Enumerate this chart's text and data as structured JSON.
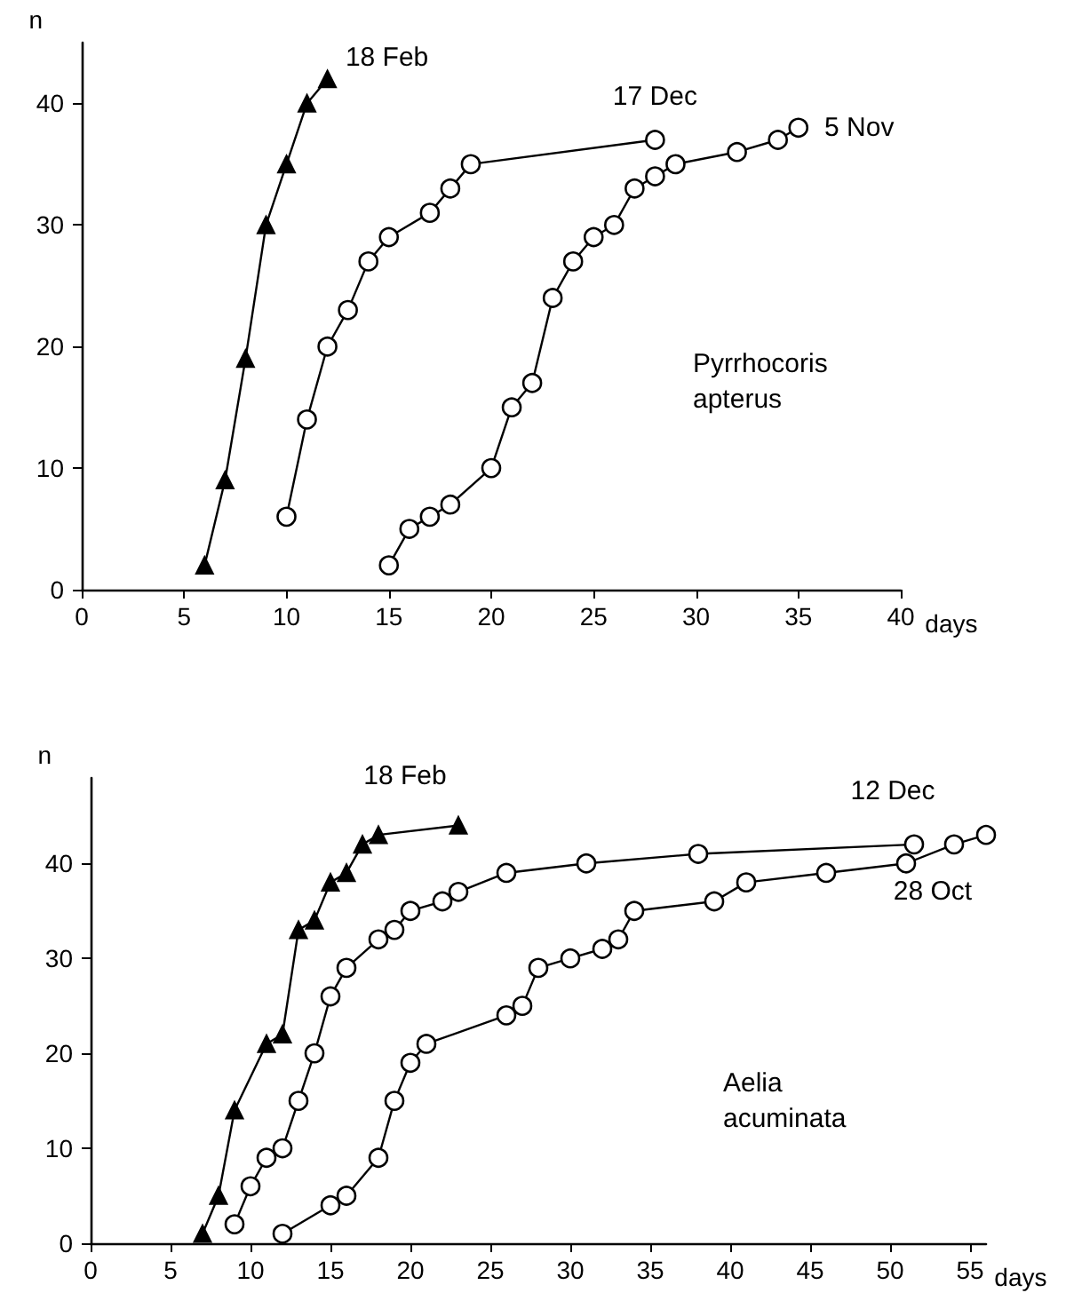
{
  "chart_data": [
    {
      "type": "line",
      "xlabel": "days",
      "ylabel": "n",
      "xlim": [
        0,
        40
      ],
      "ylim": [
        0,
        45
      ],
      "xticks": [
        0,
        5,
        10,
        15,
        20,
        25,
        30,
        35,
        40
      ],
      "yticks": [
        0,
        10,
        20,
        30,
        40
      ],
      "grid": false,
      "legend": false,
      "annotations": [
        "Pyrrhocoris apterus"
      ],
      "series": [
        {
          "name": "18 Feb",
          "color": "#000000",
          "marker": "triangle",
          "x": [
            6,
            7,
            8,
            9,
            10,
            11,
            12
          ],
          "values": [
            2,
            9,
            19,
            30,
            35,
            40,
            42
          ]
        },
        {
          "name": "17 Dec",
          "color": "#000000",
          "marker": "circle",
          "x": [
            10,
            11,
            12,
            13,
            14,
            15,
            17,
            18,
            19,
            28
          ],
          "values": [
            6,
            14,
            20,
            23,
            27,
            29,
            31,
            33,
            35,
            37
          ]
        },
        {
          "name": "5 Nov",
          "color": "#000000",
          "marker": "circle",
          "x": [
            15,
            16,
            17,
            18,
            20,
            21,
            22,
            23,
            24,
            25,
            26,
            27,
            28,
            29,
            32,
            34,
            35
          ],
          "values": [
            2,
            5,
            6,
            7,
            10,
            15,
            17,
            24,
            27,
            29,
            30,
            33,
            34,
            35,
            36,
            37,
            38
          ]
        }
      ]
    },
    {
      "type": "line",
      "xlabel": "days",
      "ylabel": "n",
      "xlim": [
        0,
        56
      ],
      "ylim": [
        0,
        49
      ],
      "xticks": [
        0,
        5,
        10,
        15,
        20,
        25,
        30,
        35,
        40,
        45,
        50,
        55
      ],
      "yticks": [
        0,
        10,
        20,
        30,
        40
      ],
      "grid": false,
      "legend": false,
      "annotations": [
        "Aelia acuminata"
      ],
      "series": [
        {
          "name": "18 Feb",
          "color": "#000000",
          "marker": "triangle",
          "x": [
            7,
            8,
            9,
            11,
            12,
            13,
            14,
            15,
            16,
            17,
            18,
            23
          ],
          "values": [
            1,
            5,
            14,
            21,
            22,
            33,
            34,
            38,
            39,
            42,
            43,
            44
          ]
        },
        {
          "name": "12 Dec",
          "color": "#000000",
          "marker": "circle",
          "x": [
            9,
            10,
            11,
            12,
            13,
            14,
            15,
            16,
            18,
            19,
            20,
            22,
            23,
            26,
            31,
            38,
            51.5
          ],
          "values": [
            2,
            6,
            9,
            10,
            15,
            20,
            26,
            29,
            32,
            33,
            35,
            36,
            37,
            39,
            40,
            41,
            42
          ]
        },
        {
          "name": "28 Oct",
          "color": "#000000",
          "marker": "circle",
          "x": [
            12,
            15,
            16,
            18,
            19,
            20,
            21,
            26,
            27,
            28,
            30,
            32,
            33,
            34,
            39,
            41,
            46,
            51,
            54,
            56
          ],
          "values": [
            1,
            4,
            5,
            9,
            15,
            19,
            21,
            24,
            25,
            29,
            30,
            31,
            32,
            35,
            36,
            38,
            39,
            40,
            42,
            43
          ]
        }
      ]
    }
  ]
}
